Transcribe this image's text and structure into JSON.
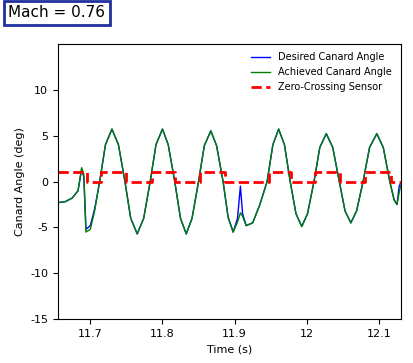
{
  "chart_data": {
    "type": "line",
    "annotation": "Mach = 0.76",
    "x_label": "Time (s)",
    "y_label": "Canard Angle (deg)",
    "xlim": [
      11.655,
      12.13
    ],
    "ylim": [
      -15,
      15
    ],
    "xticks": [
      11.7,
      11.8,
      11.9,
      12,
      12.1
    ],
    "yticks": [
      -15,
      -10,
      -5,
      0,
      5,
      10
    ],
    "grid": false,
    "legend": "upper right",
    "x": [
      11.655,
      11.665,
      11.675,
      11.683,
      11.688,
      11.691,
      11.694,
      11.7,
      11.706,
      11.713,
      11.721,
      11.73,
      11.739,
      11.748,
      11.756,
      11.765,
      11.774,
      11.783,
      11.791,
      11.8,
      11.808,
      11.817,
      11.825,
      11.833,
      11.841,
      11.85,
      11.858,
      11.867,
      11.875,
      11.884,
      11.891,
      11.898,
      11.904,
      11.908,
      11.911,
      11.916,
      11.925,
      11.935,
      11.945,
      11.953,
      11.961,
      11.969,
      11.977,
      11.985,
      11.993,
      12.001,
      12.01,
      12.018,
      12.027,
      12.036,
      12.045,
      12.053,
      12.061,
      12.069,
      12.078,
      12.087,
      12.097,
      12.106,
      12.115,
      12.121,
      12.125,
      12.128,
      12.13
    ],
    "series": [
      {
        "name": "Desired Canard Angle",
        "color": "#0000ff",
        "line_style": "solid",
        "values": [
          -2.3,
          -2.2,
          -1.8,
          -1.0,
          1.3,
          0.5,
          -5.2,
          -4.8,
          -3.0,
          0.0,
          4.0,
          5.7,
          4.0,
          0.0,
          -4.0,
          -5.7,
          -4.0,
          0.0,
          4.0,
          5.7,
          4.0,
          0.0,
          -4.0,
          -5.7,
          -4.0,
          0.0,
          3.9,
          5.5,
          3.9,
          0.0,
          -3.9,
          -5.5,
          -4.0,
          -0.5,
          -3.5,
          -4.8,
          -4.5,
          -2.5,
          0.0,
          4.0,
          5.7,
          4.0,
          0.0,
          -3.5,
          -4.9,
          -3.5,
          0.0,
          3.7,
          5.2,
          3.7,
          0.0,
          -3.2,
          -4.5,
          -3.2,
          0.0,
          3.7,
          5.2,
          3.7,
          0.0,
          -2.0,
          -2.5,
          -0.5,
          -0.2
        ]
      },
      {
        "name": "Achieved Canard Angle",
        "color": "#008000",
        "line_style": "solid",
        "values": [
          -2.3,
          -2.2,
          -1.8,
          -1.0,
          1.5,
          0.8,
          -5.5,
          -5.2,
          -3.2,
          0.0,
          4.0,
          5.7,
          4.0,
          0.0,
          -4.0,
          -5.7,
          -4.0,
          0.0,
          4.0,
          5.7,
          4.0,
          0.0,
          -4.0,
          -5.7,
          -4.0,
          0.0,
          3.9,
          5.5,
          3.9,
          0.0,
          -3.9,
          -5.5,
          -4.4,
          -3.4,
          -3.8,
          -4.8,
          -4.5,
          -2.5,
          0.0,
          4.0,
          5.7,
          4.0,
          0.0,
          -3.5,
          -4.9,
          -3.5,
          0.0,
          3.7,
          5.2,
          3.7,
          0.0,
          -3.2,
          -4.5,
          -3.2,
          0.0,
          3.7,
          5.2,
          3.7,
          0.0,
          -2.0,
          -2.5,
          -1.2,
          -0.5
        ]
      },
      {
        "name": "Zero-Crossing Sensor",
        "color": "#ff0000",
        "line_style": "dashed",
        "type": "step",
        "x": [
          11.655,
          11.695,
          11.715,
          11.75,
          11.785,
          11.818,
          11.852,
          11.886,
          11.947,
          11.978,
          12.012,
          12.046,
          12.08,
          12.117,
          12.13
        ],
        "values": [
          1,
          0,
          1,
          0,
          1,
          0,
          1,
          0,
          1,
          0,
          1,
          0,
          1,
          0,
          0
        ]
      }
    ]
  }
}
